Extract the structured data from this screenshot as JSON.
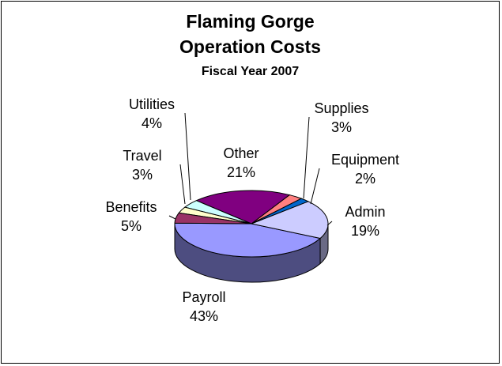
{
  "chart_data": {
    "type": "pie",
    "title_lines": [
      "Flaming Gorge",
      "Operation Costs"
    ],
    "subtitle": "Fiscal Year 2007",
    "slices": [
      {
        "label": "Payroll",
        "pct_text": "43%",
        "value": 43,
        "color": "#9999FF",
        "side_color": "#4d4d80"
      },
      {
        "label": "Admin",
        "pct_text": "19%",
        "value": 19,
        "color": "#CCCCFF",
        "side_color": "#6a6a85"
      },
      {
        "label": "Equipment",
        "pct_text": "2%",
        "value": 2,
        "color": "#0066CC",
        "side_color": "#003366"
      },
      {
        "label": "Supplies",
        "pct_text": "3%",
        "value": 3,
        "color": "#FF8080",
        "side_color": "#804040"
      },
      {
        "label": "Other",
        "pct_text": "21%",
        "value": 21,
        "color": "#800080",
        "side_color": "#400040"
      },
      {
        "label": "Utilities",
        "pct_text": "4%",
        "value": 4,
        "color": "#CCFFFF",
        "side_color": "#668080"
      },
      {
        "label": "Travel",
        "pct_text": "3%",
        "value": 3,
        "color": "#FFFFCC",
        "side_color": "#808066"
      },
      {
        "label": "Benefits",
        "pct_text": "5%",
        "value": 5,
        "color": "#993366",
        "side_color": "#4d1a33"
      }
    ],
    "view": "3d",
    "legend": "none"
  }
}
